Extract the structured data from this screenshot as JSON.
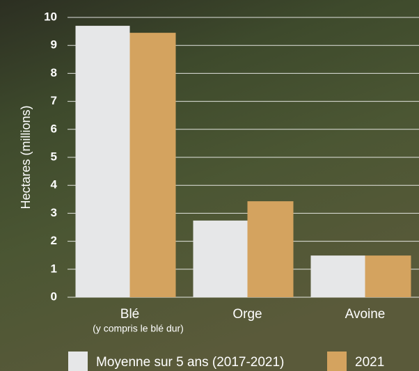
{
  "chart_data": {
    "type": "bar",
    "y_axis_label": "Hectares (millions)",
    "categories": [
      "Blé",
      "Orge",
      "Avoine"
    ],
    "category_notes": [
      "(y compris le blé dur)",
      null,
      null
    ],
    "series": [
      {
        "name": "Moyenne sur 5 ans (2017-2021)",
        "color": "#e6e7e8",
        "values": [
          9.7,
          2.74,
          1.49
        ]
      },
      {
        "name": "2021",
        "color": "#d4a35f",
        "values": [
          9.45,
          3.43,
          1.49
        ]
      }
    ],
    "ylim": [
      0,
      10
    ],
    "yticks": [
      0,
      1,
      2,
      3,
      4,
      5,
      6,
      7,
      8,
      9,
      10
    ],
    "grid": true
  }
}
